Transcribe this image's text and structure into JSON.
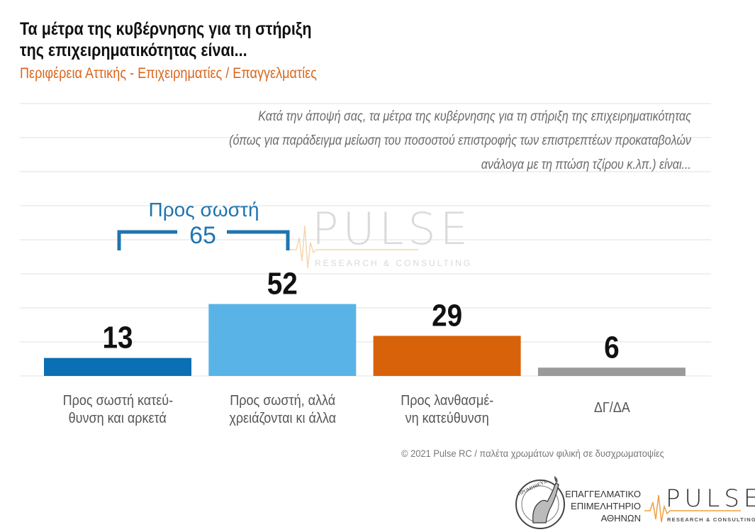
{
  "header": {
    "title_line1": "Τα μέτρα της κυβέρνησης για τη στήριξη",
    "title_line2": "της επιχειρηματικότητας είναι...",
    "subtitle": "Περιφέρεια Αττικής - Επιχειρηματίες / Επαγγελματίες"
  },
  "question": {
    "line1": "Κατά την άποψή σας, τα μέτρα της κυβέρνησης για τη στήριξη της επιχειρηματικότητας",
    "line2": "(όπως για παράδειγμα μείωση του ποσοστού επιστροφής των επιστρεπτέων προκαταβολών",
    "line3": "ανάλογα με τη πτώση τζίρου κ.λπ.) είναι..."
  },
  "bracket": {
    "label": "Προς σωστή",
    "value": "65"
  },
  "chart_data": {
    "type": "bar",
    "title": "Τα μέτρα της κυβέρνησης για τη στήριξη της επιχειρηματικότητας είναι...",
    "subtitle": "Περιφέρεια Αττικής - Επιχειρηματίες / Επαγγελματίες",
    "categories": [
      "Προς σωστή κατεύθυνση και αρκετά",
      "Προς σωστή, αλλά χρειάζονται κι άλλα",
      "Προς λανθασμένη κατεύθυνση",
      "ΔΓ/ΔΑ"
    ],
    "category_lines": [
      [
        "Προς σωστή κατεύ-",
        "θυνση και αρκετά"
      ],
      [
        "Προς σωστή, αλλά",
        "χρειάζονται κι άλλα"
      ],
      [
        "Προς λανθασμέ-",
        "νη κατεύθυνση"
      ],
      [
        "ΔΓ/ΔΑ"
      ]
    ],
    "values": [
      13,
      52,
      29,
      6
    ],
    "value_labels": [
      "13",
      "52",
      "29",
      "6"
    ],
    "colors": [
      "#0b6fb3",
      "#5ab3e6",
      "#d8620a",
      "#9a9a9a"
    ],
    "annotation": {
      "text": "Προς σωστή",
      "value": 65,
      "spans": [
        0,
        1
      ]
    },
    "xlabel": "",
    "ylabel": "",
    "ylim": [
      0,
      125
    ],
    "grid": true,
    "grid_step": 24.5,
    "legend": "none"
  },
  "footer": {
    "note": "© 2021 Pulse RC  /  παλέτα χρωμάτων φιλική σε δυσχρωματοψίες",
    "chamber_line1": "ΕΠΑΓΓΕΛΜΑΤΙΚΟ",
    "chamber_line2": "ΕΠΙΜΕΛΗΤΗΡΙΟ",
    "chamber_line3": "ΑΘΗΝΩΝ",
    "emblem_text": "ΠΡΟΜΗΘΕΥΣ",
    "logo_main": "PULSE",
    "logo_sub": "RESEARCH & CONSULTING"
  },
  "watermark": {
    "main": "PULSE",
    "sub": "RESEARCH & CONSULTING"
  }
}
